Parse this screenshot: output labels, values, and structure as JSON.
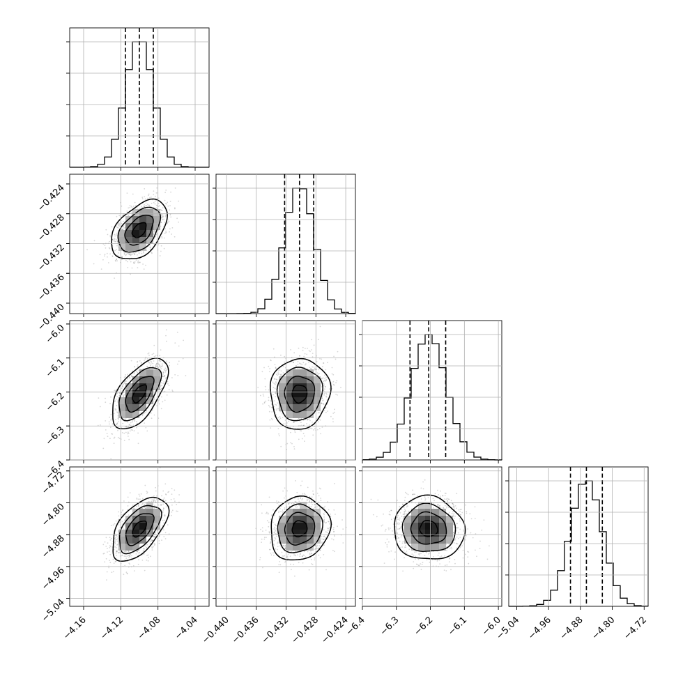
{
  "chart_data": {
    "type": "corner",
    "parameters": [
      {
        "name": "",
        "range": [
          -4.175,
          -4.025
        ],
        "median": -4.1,
        "quantile_16": -4.115,
        "quantile_84": -4.085,
        "mean": -4.1,
        "sd": 0.015,
        "ticks": [
          -4.16,
          -4.12,
          -4.08,
          -4.04
        ],
        "tick_labels": [
          "−4.16",
          "−4.12",
          "−4.08",
          "−4.04"
        ]
      },
      {
        "name": "",
        "range": [
          -0.4414,
          -0.4227
        ],
        "median": -0.4302,
        "quantile_16": -0.4322,
        "quantile_84": -0.4283,
        "mean": -0.4302,
        "sd": 0.002,
        "ticks": [
          -0.44,
          -0.436,
          -0.432,
          -0.428,
          -0.424
        ],
        "tick_labels": [
          "−0.440",
          "−0.436",
          "−0.432",
          "−0.428",
          "−0.424"
        ]
      },
      {
        "name": "",
        "range": [
          -6.4,
          -5.99
        ],
        "median": -6.205,
        "quantile_16": -6.26,
        "quantile_84": -6.155,
        "mean": -6.205,
        "sd": 0.052,
        "ticks": [
          -6.4,
          -6.3,
          -6.2,
          -6.1,
          -6.0
        ],
        "tick_labels": [
          "−6.4",
          "−6.3",
          "−6.2",
          "−6.1",
          "−6.0"
        ]
      },
      {
        "name": "",
        "range": [
          -5.06,
          -4.71
        ],
        "median": -4.865,
        "quantile_16": -4.905,
        "quantile_84": -4.825,
        "mean": -4.865,
        "sd": 0.04,
        "ticks": [
          -5.04,
          -4.96,
          -4.88,
          -4.8,
          -4.72
        ],
        "tick_labels": [
          "−5.04",
          "−4.96",
          "−4.88",
          "−4.80",
          "−4.72"
        ]
      }
    ],
    "correlations": [
      {
        "pair": [
          1,
          0
        ],
        "rho": 0.45
      },
      {
        "pair": [
          2,
          0
        ],
        "rho": 0.6
      },
      {
        "pair": [
          2,
          1
        ],
        "rho": 0.05
      },
      {
        "pair": [
          3,
          0
        ],
        "rho": 0.55
      },
      {
        "pair": [
          3,
          1
        ],
        "rho": 0.1
      },
      {
        "pair": [
          3,
          2
        ],
        "rho": -0.05
      }
    ],
    "quantiles_shown": [
      0.16,
      0.5,
      0.84
    ],
    "contour_levels_sigma": [
      0.5,
      1.0,
      1.5,
      2.0
    ],
    "grid": true,
    "legend": "none",
    "title": "",
    "xlabel": "",
    "ylabel": ""
  }
}
